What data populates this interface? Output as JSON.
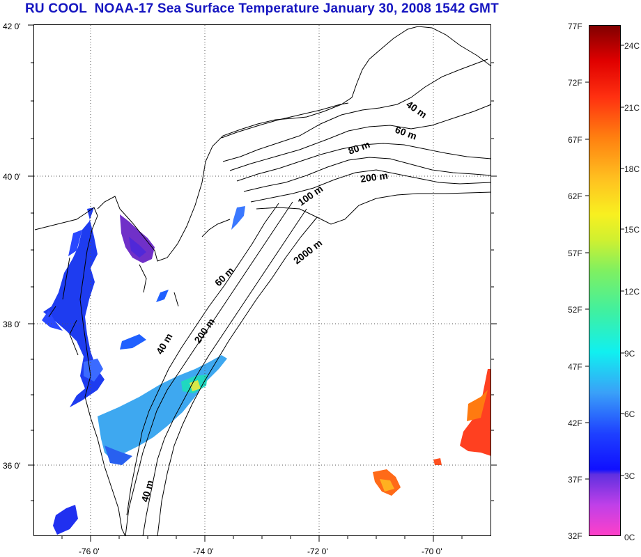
{
  "title": "RU COOL  NOAA-17 Sea Surface Temperature January 30, 2008 1542 GMT",
  "lat_labels": [
    "42 0'",
    "40 0'",
    "38 0'",
    "36 0'"
  ],
  "lon_labels": [
    "-76 0'",
    "-74 0'",
    "-72 0'",
    "-70 0'"
  ],
  "contours": [
    "40 m",
    "60 m",
    "80 m",
    "200 m",
    "100 m",
    "2000 m",
    "60 m",
    "200 m",
    "40 m",
    "40 m"
  ],
  "colorbar": {
    "fahrenheit": [
      "77F",
      "72F",
      "67F",
      "62F",
      "57F",
      "52F",
      "47F",
      "42F",
      "37F",
      "32F"
    ],
    "celsius": [
      "24C",
      "21C",
      "18C",
      "15C",
      "12C",
      "9C",
      "6C",
      "3C",
      "0C"
    ]
  },
  "colors": {
    "title": "#1515c0"
  }
}
